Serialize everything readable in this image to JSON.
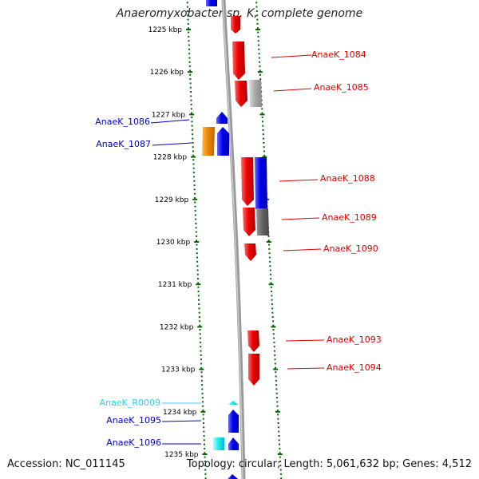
{
  "title": "Anaeromyxobacter sp. K, complete genome",
  "footer": {
    "accession": "Accession: NC_011145",
    "topology": "Topology: circular; Length: 5,061,632 bp; Genes: 4,512"
  },
  "ruler": [
    {
      "kb": 1225,
      "label": "1225 kbp"
    },
    {
      "kb": 1226,
      "label": "1226 kbp"
    },
    {
      "kb": 1227,
      "label": "1227 kbp"
    },
    {
      "kb": 1228,
      "label": "1228 kbp"
    },
    {
      "kb": 1229,
      "label": "1229 kbp"
    },
    {
      "kb": 1230,
      "label": "1230 kbp"
    },
    {
      "kb": 1231,
      "label": "1231 kbp"
    },
    {
      "kb": 1232,
      "label": "1232 kbp"
    },
    {
      "kb": 1233,
      "label": "1233 kbp"
    },
    {
      "kb": 1234,
      "label": "1234 kbp"
    },
    {
      "kb": 1235,
      "label": "1235 kbp"
    }
  ],
  "genes": [
    {
      "name": "AnaeK_1084",
      "strand": "+",
      "color": "#dd0000"
    },
    {
      "name": "AnaeK_1085",
      "strand": "+",
      "color": "#dd0000"
    },
    {
      "name": "AnaeK_1086",
      "strand": "-",
      "color": "#0000cc"
    },
    {
      "name": "AnaeK_1087",
      "strand": "-",
      "color": "#0000cc"
    },
    {
      "name": "AnaeK_1088",
      "strand": "+",
      "color": "#dd0000"
    },
    {
      "name": "AnaeK_1089",
      "strand": "+",
      "color": "#dd0000"
    },
    {
      "name": "AnaeK_1090",
      "strand": "+",
      "color": "#dd0000"
    },
    {
      "name": "AnaeK_1093",
      "strand": "+",
      "color": "#dd0000"
    },
    {
      "name": "AnaeK_1094",
      "strand": "+",
      "color": "#dd0000"
    },
    {
      "name": "AnaeK_R0009",
      "strand": "-",
      "color": "#33ccee"
    },
    {
      "name": "AnaeK_1095",
      "strand": "-",
      "color": "#0000cc"
    },
    {
      "name": "AnaeK_1096",
      "strand": "-",
      "color": "#0000cc"
    }
  ],
  "colors": {
    "forward": "#ee0000",
    "reverse": "#0000ee",
    "rna": "#33ccee",
    "orange": "#ee8800",
    "gray": "#aaaaaa",
    "darkgray": "#666666",
    "ruler": "#006600",
    "backbone": "#999999"
  }
}
